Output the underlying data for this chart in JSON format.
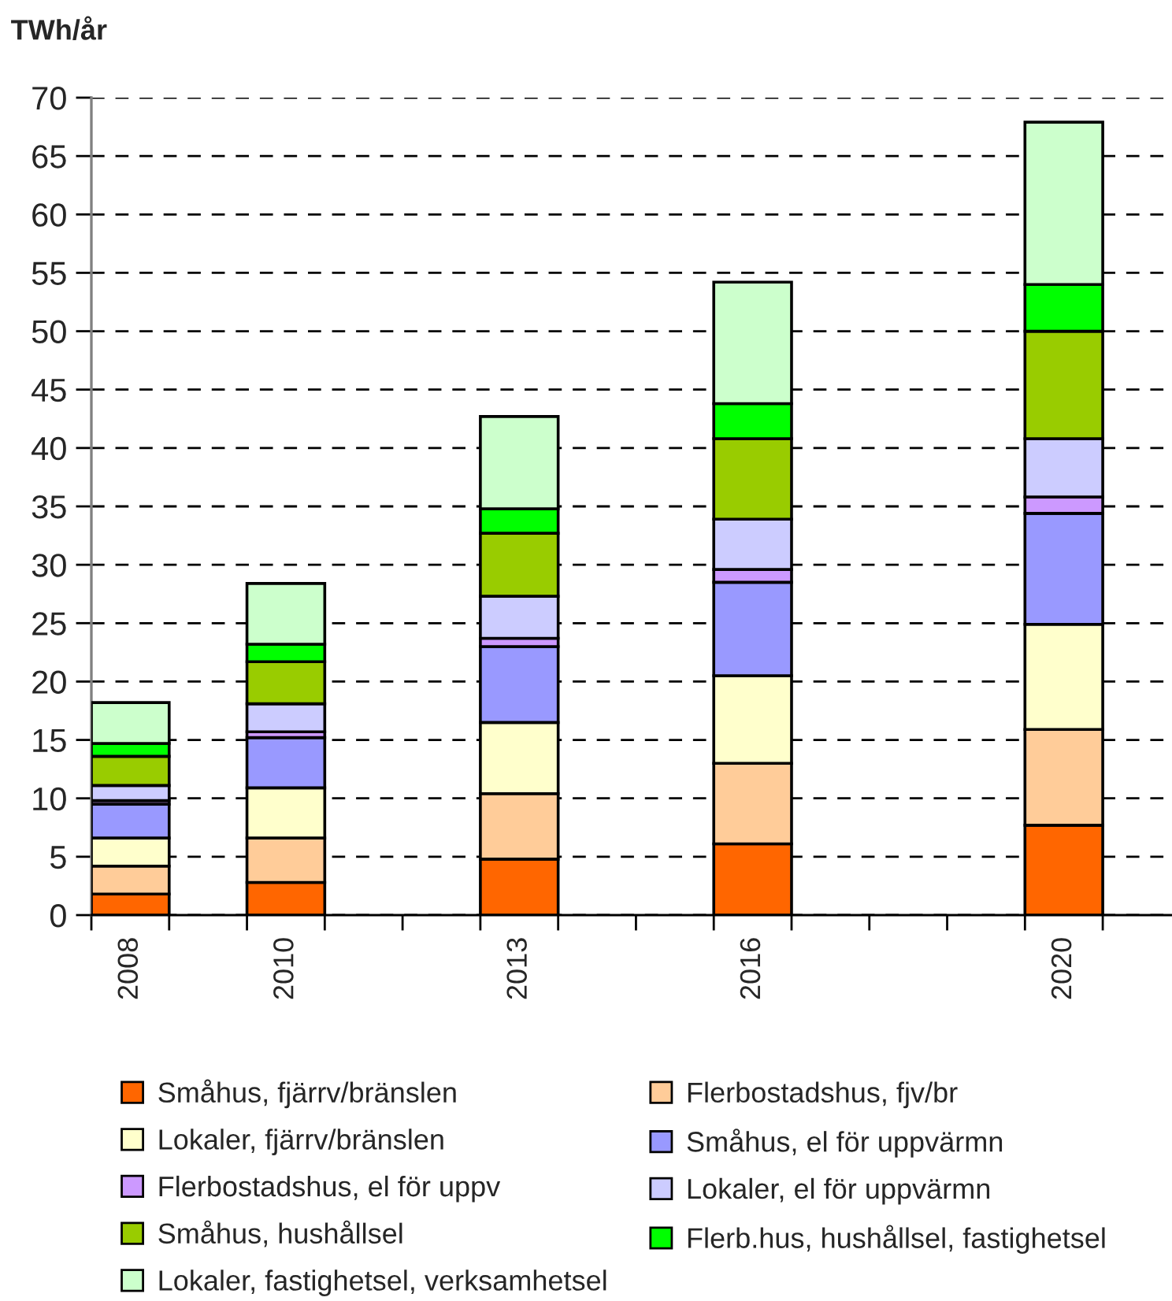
{
  "chart_data": {
    "type": "bar",
    "ylabel": "TWh/år",
    "stacked": true,
    "categories": [
      "2008",
      null,
      "2010",
      null,
      null,
      "2013",
      null,
      null,
      "2016",
      null,
      null,
      null,
      "2020"
    ],
    "series": [
      {
        "name": "Småhus, fjärrv/bränslen",
        "color": "#ff6600",
        "values": [
          1.8,
          null,
          2.8,
          null,
          null,
          4.8,
          null,
          null,
          6.1,
          null,
          null,
          null,
          7.7
        ]
      },
      {
        "name": "Flerbostadshus, fjv/br",
        "color": "#ffcc99",
        "values": [
          2.4,
          null,
          3.8,
          null,
          null,
          5.6,
          null,
          null,
          6.9,
          null,
          null,
          null,
          8.2
        ]
      },
      {
        "name": "Lokaler, fjärrv/bränslen",
        "color": "#ffffcc",
        "values": [
          2.4,
          null,
          4.3,
          null,
          null,
          6.1,
          null,
          null,
          7.5,
          null,
          null,
          null,
          9.0
        ]
      },
      {
        "name": "Småhus, el för uppvärmn",
        "color": "#9999ff",
        "values": [
          2.9,
          null,
          4.3,
          null,
          null,
          6.5,
          null,
          null,
          8.0,
          null,
          null,
          null,
          9.5
        ]
      },
      {
        "name": "Flerbostadshus, el för uppv",
        "color": "#cc99ff",
        "values": [
          0.3,
          null,
          0.5,
          null,
          null,
          0.7,
          null,
          null,
          1.1,
          null,
          null,
          null,
          1.4
        ]
      },
      {
        "name": "Lokaler, el för uppvärmn",
        "color": "#ccccff",
        "values": [
          1.3,
          null,
          2.4,
          null,
          null,
          3.6,
          null,
          null,
          4.3,
          null,
          null,
          null,
          5.0
        ]
      },
      {
        "name": "Småhus, hushållsel",
        "color": "#99cc00",
        "values": [
          2.5,
          null,
          3.6,
          null,
          null,
          5.4,
          null,
          null,
          6.9,
          null,
          null,
          null,
          9.2
        ]
      },
      {
        "name": "Flerb.hus, hushållsel, fastighetsel",
        "color": "#00ff00",
        "values": [
          1.1,
          null,
          1.5,
          null,
          null,
          2.1,
          null,
          null,
          3.0,
          null,
          null,
          null,
          4.0
        ]
      },
      {
        "name": "Lokaler, fastighetsel, verksamhetsel",
        "color": "#ccffcc",
        "values": [
          3.5,
          null,
          5.2,
          null,
          null,
          7.9,
          null,
          null,
          10.4,
          null,
          null,
          null,
          13.9
        ]
      }
    ],
    "ylim": [
      0,
      70
    ],
    "yticks": [
      0,
      5,
      10,
      15,
      20,
      25,
      30,
      35,
      40,
      45,
      50,
      55,
      60,
      65,
      70
    ],
    "grid": "y",
    "legend": "bottom"
  }
}
